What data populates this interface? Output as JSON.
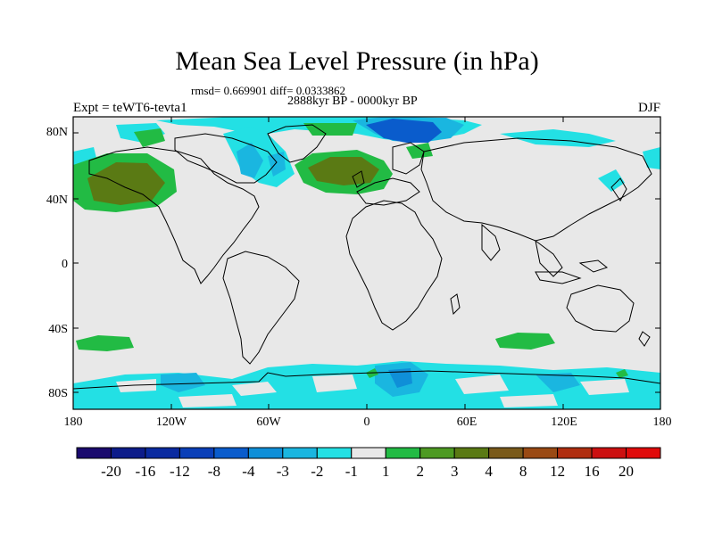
{
  "title": "Mean Sea Level Pressure (in hPa)",
  "stats_line": "rmsd= 0.669901 diff= 0.0333862",
  "period": "2888kyr BP - 0000kyr BP",
  "experiment": "Expt = teWT6-tevta1",
  "season": "DJF",
  "lat_labels": [
    "80N",
    "40N",
    "0",
    "40S",
    "80S"
  ],
  "lon_labels": [
    "180",
    "120W",
    "60W",
    "0",
    "60E",
    "120E",
    "180"
  ],
  "colorbar": {
    "labels": [
      "-20",
      "-16",
      "-12",
      "-8",
      "-4",
      "-3",
      "-2",
      "-1",
      "1",
      "2",
      "3",
      "4",
      "8",
      "12",
      "16",
      "20"
    ],
    "colors": [
      "#1a0a6e",
      "#0d1c8a",
      "#0a2aa0",
      "#0a3fb8",
      "#0a5ccc",
      "#0f8fd8",
      "#1ab6e0",
      "#23e0e4",
      "#e8e8e8",
      "#22bb44",
      "#4d9a22",
      "#5a7a14",
      "#7a5a1a",
      "#9a4a14",
      "#b02e10",
      "#cc1010",
      "#e00a0a"
    ]
  },
  "colors": {
    "land_bg": "#e8e8e8",
    "neg1": "#23e0e4",
    "neg2": "#1ab6e0",
    "neg3": "#0f8fd8",
    "neg4": "#0a5ccc",
    "pos1": "#22bb44",
    "pos2": "#4d9a22",
    "pos3": "#5a7a14"
  }
}
